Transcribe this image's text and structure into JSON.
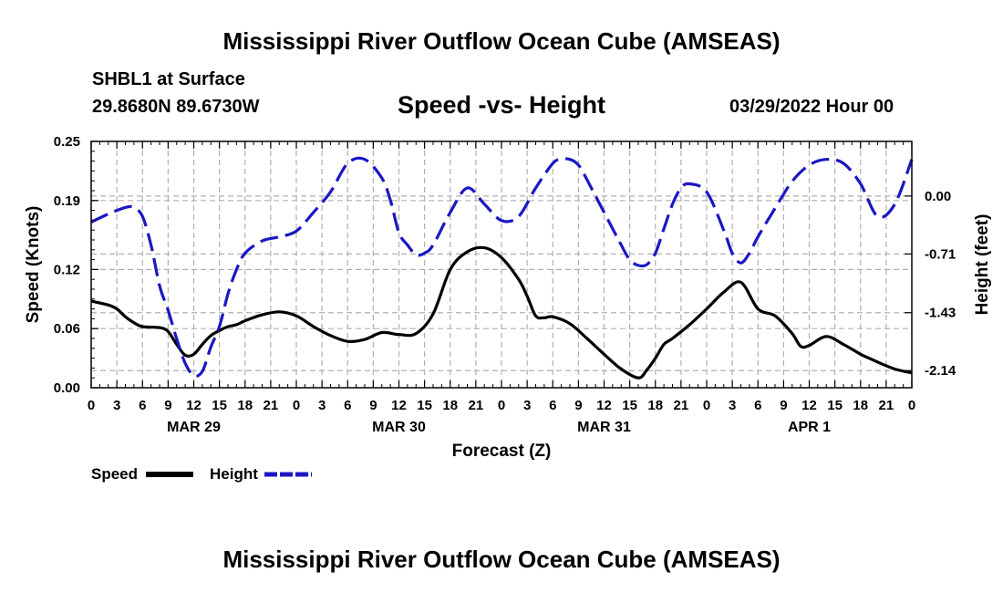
{
  "header": {
    "title": "Mississippi River Outflow Ocean Cube (AMSEAS)",
    "station": "SHBL1 at Surface",
    "coordinates": "29.8680N  89.6730W",
    "subtitle": "Speed -vs- Height",
    "datetime": "03/29/2022 Hour 00"
  },
  "footer": {
    "title": "Mississippi River Outflow Ocean Cube (AMSEAS)"
  },
  "chart_data": {
    "type": "line",
    "title": "Speed -vs- Height",
    "xlabel": "Forecast (Z)",
    "ylabel": "Speed (Knots)",
    "y2label": "Height (feet)",
    "x_range_hours": [
      0,
      96
    ],
    "x_tick_step_hours": 3,
    "x_tick_labels": [
      "0",
      "3",
      "6",
      "9",
      "12",
      "15",
      "18",
      "21",
      "0",
      "3",
      "6",
      "9",
      "12",
      "15",
      "18",
      "21",
      "0",
      "3",
      "6",
      "9",
      "12",
      "15",
      "18",
      "21",
      "0",
      "3",
      "6",
      "9",
      "12",
      "15",
      "18",
      "21",
      "0"
    ],
    "day_labels": [
      {
        "label": "MAR 29",
        "hour": 12
      },
      {
        "label": "MAR 30",
        "hour": 36
      },
      {
        "label": "MAR 31",
        "hour": 60
      },
      {
        "label": "APR 1",
        "hour": 84
      }
    ],
    "ylim": [
      0,
      0.25
    ],
    "y_ticks": [
      0.0,
      0.06,
      0.12,
      0.19,
      0.25
    ],
    "y_tick_labels": [
      "0.00",
      "0.06",
      "0.12",
      "0.19",
      "0.25"
    ],
    "y2lim": [
      -2.35,
      0.67
    ],
    "y2_ticks": [
      0.0,
      -0.71,
      -1.43,
      -2.14
    ],
    "y2_tick_labels": [
      "0.00",
      "-0.71",
      "-1.43",
      "-2.14"
    ],
    "grid": true,
    "legend_position": "bottom-left",
    "series": [
      {
        "name": "Speed",
        "color": "#000000",
        "style": "solid",
        "axis": "left",
        "x": [
          0,
          2,
          3,
          4,
          5,
          6,
          8,
          9,
          10,
          11,
          12,
          13,
          14,
          15,
          16,
          17,
          18,
          20,
          22,
          24,
          26,
          28,
          30,
          32,
          34,
          36,
          38,
          40,
          42,
          44,
          46,
          48,
          50,
          51,
          52,
          53,
          54,
          56,
          58,
          60,
          62,
          64,
          65,
          66,
          67,
          68,
          70,
          72,
          74,
          76,
          78,
          80,
          82,
          83,
          84,
          86,
          88,
          90,
          91,
          92,
          94,
          96
        ],
        "values": [
          0.088,
          0.084,
          0.08,
          0.072,
          0.066,
          0.062,
          0.061,
          0.057,
          0.044,
          0.033,
          0.034,
          0.044,
          0.053,
          0.058,
          0.062,
          0.064,
          0.068,
          0.074,
          0.077,
          0.073,
          0.062,
          0.053,
          0.047,
          0.049,
          0.056,
          0.054,
          0.055,
          0.075,
          0.12,
          0.138,
          0.142,
          0.132,
          0.11,
          0.093,
          0.073,
          0.071,
          0.072,
          0.065,
          0.05,
          0.034,
          0.019,
          0.01,
          0.018,
          0.03,
          0.044,
          0.05,
          0.064,
          0.08,
          0.097,
          0.107,
          0.08,
          0.073,
          0.055,
          0.042,
          0.043,
          0.052,
          0.044,
          0.034,
          0.03,
          0.026,
          0.019,
          0.015
        ]
      },
      {
        "name": "Height",
        "color": "#1a17c4",
        "style": "dashed",
        "axis": "right",
        "x": [
          0,
          2,
          4,
          5,
          6,
          7,
          8,
          9,
          10,
          11,
          12,
          13,
          14,
          15,
          16,
          17,
          18,
          20,
          22,
          24,
          26,
          28,
          30,
          32,
          34,
          35,
          36,
          37,
          38,
          39,
          40,
          42,
          44,
          46,
          48,
          50,
          52,
          54,
          55,
          56,
          57,
          58,
          60,
          62,
          63,
          64,
          65,
          66,
          67,
          68,
          69,
          70,
          72,
          74,
          75,
          76,
          77,
          78,
          80,
          82,
          84,
          86,
          88,
          90,
          92,
          94,
          96
        ],
        "values": [
          -0.32,
          -0.22,
          -0.14,
          -0.14,
          -0.25,
          -0.6,
          -1.1,
          -1.4,
          -1.75,
          -2.05,
          -2.2,
          -2.15,
          -1.85,
          -1.6,
          -1.2,
          -0.9,
          -0.7,
          -0.55,
          -0.5,
          -0.43,
          -0.2,
          0.05,
          0.4,
          0.45,
          0.22,
          -0.05,
          -0.45,
          -0.6,
          -0.72,
          -0.7,
          -0.6,
          -0.2,
          0.1,
          -0.1,
          -0.3,
          -0.25,
          0.1,
          0.4,
          0.45,
          0.45,
          0.38,
          0.2,
          -0.2,
          -0.6,
          -0.78,
          -0.85,
          -0.84,
          -0.7,
          -0.4,
          -0.1,
          0.1,
          0.15,
          0.05,
          -0.42,
          -0.7,
          -0.82,
          -0.7,
          -0.5,
          -0.15,
          0.18,
          0.38,
          0.45,
          0.4,
          0.15,
          -0.25,
          -0.1,
          0.45
        ]
      }
    ]
  }
}
